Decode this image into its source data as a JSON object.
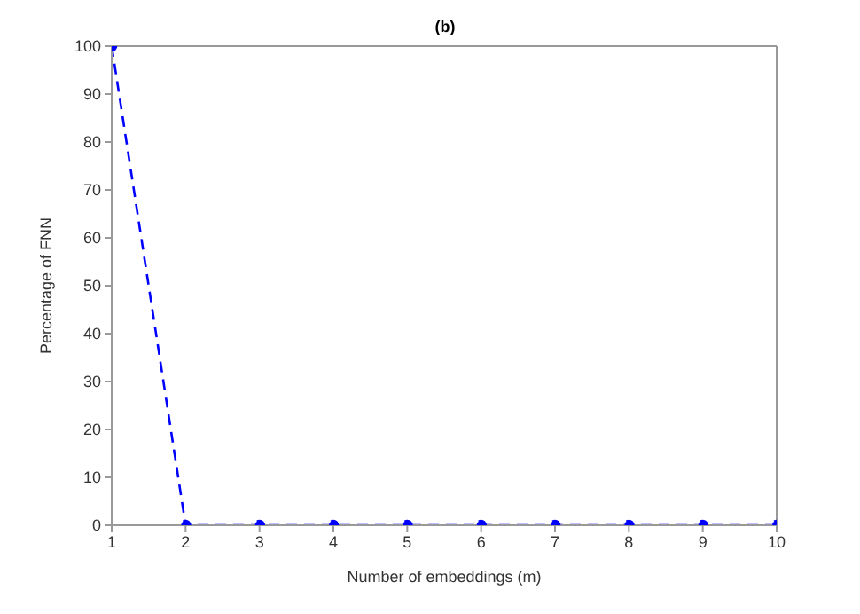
{
  "chart_data": {
    "type": "line",
    "title": "(b)",
    "xlabel": "Number of embeddings (m)",
    "ylabel": "Percentage of FNN",
    "x": [
      1,
      2,
      3,
      4,
      5,
      6,
      7,
      8,
      9,
      10
    ],
    "series": [
      {
        "color": "#0000ff",
        "values": [
          100,
          0,
          0,
          0,
          0,
          0,
          0,
          0,
          0,
          0
        ]
      }
    ],
    "xlim": [
      1,
      10
    ],
    "xticks": [
      1,
      2,
      3,
      4,
      5,
      6,
      7,
      8,
      9,
      10
    ],
    "ylim": [
      0,
      100
    ],
    "yticks": [
      0,
      10,
      20,
      30,
      40,
      50,
      60,
      70,
      80,
      90,
      100
    ],
    "grid": false,
    "legend": false,
    "marker": "circle",
    "line_style": "dashed"
  }
}
